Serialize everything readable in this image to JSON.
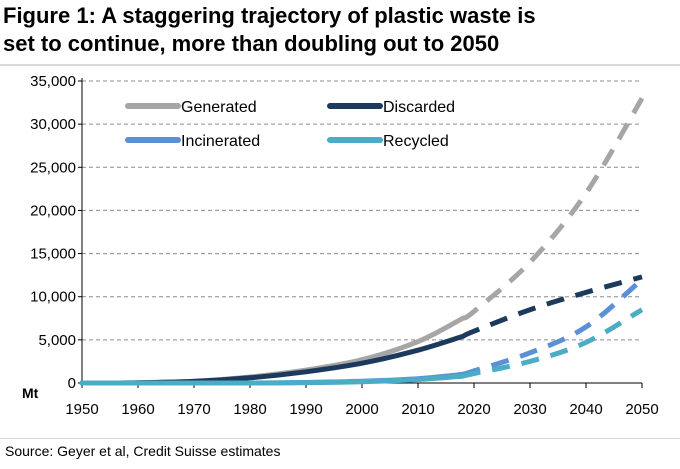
{
  "title_line1": "Figure 1: A staggering trajectory of plastic waste is",
  "title_line2": "set to continue, more than doubling out to 2050",
  "source": "Source: Geyer et al, Credit Suisse estimates",
  "chart_data": {
    "type": "line",
    "title": "Figure 1: A staggering trajectory of plastic waste is set to continue, more than doubling out to 2050",
    "ylabel": "Mt",
    "xlabel": "",
    "xlim": [
      1950,
      2050
    ],
    "ylim": [
      0,
      35000
    ],
    "yticks": [
      0,
      5000,
      10000,
      15000,
      20000,
      25000,
      30000,
      35000
    ],
    "ytick_labels": [
      "0",
      "5,000",
      "10,000",
      "15,000",
      "20,000",
      "25,000",
      "30,000",
      "35,000"
    ],
    "xticks": [
      1950,
      1960,
      1970,
      1980,
      1990,
      2000,
      2010,
      2020,
      2030,
      2040,
      2050
    ],
    "xtick_labels": [
      "1950",
      "1960",
      "1970",
      "1980",
      "1990",
      "2000",
      "2010",
      "2020",
      "2030",
      "2040",
      "2050"
    ],
    "grid": "horizontal dashed",
    "legend_position": "top-left",
    "projection_start": 2018,
    "series": [
      {
        "name": "Generated",
        "color": "#a6a6a6",
        "x": [
          1950,
          1960,
          1970,
          1980,
          1990,
          2000,
          2010,
          2018,
          2020,
          2030,
          2040,
          2050
        ],
        "y": [
          0,
          30,
          200,
          700,
          1500,
          2700,
          4800,
          7500,
          8300,
          14000,
          22000,
          33000
        ]
      },
      {
        "name": "Discarded",
        "color": "#1b3a5c",
        "x": [
          1950,
          1960,
          1970,
          1980,
          1990,
          2000,
          2010,
          2018,
          2020,
          2030,
          2040,
          2050
        ],
        "y": [
          0,
          30,
          180,
          600,
          1300,
          2300,
          3800,
          5400,
          6000,
          8500,
          10500,
          12300
        ]
      },
      {
        "name": "Incinerated",
        "color": "#5b8fd6",
        "x": [
          1950,
          1960,
          1970,
          1980,
          1990,
          2000,
          2010,
          2018,
          2020,
          2030,
          2040,
          2050
        ],
        "y": [
          0,
          0,
          0,
          5,
          60,
          200,
          500,
          1000,
          1400,
          3500,
          6500,
          12000
        ]
      },
      {
        "name": "Recycled",
        "color": "#4bacc6",
        "x": [
          1950,
          1960,
          1970,
          1980,
          1990,
          2000,
          2010,
          2018,
          2020,
          2030,
          2040,
          2050
        ],
        "y": [
          0,
          0,
          0,
          5,
          50,
          150,
          400,
          800,
          1100,
          2500,
          4700,
          8500
        ]
      }
    ]
  }
}
